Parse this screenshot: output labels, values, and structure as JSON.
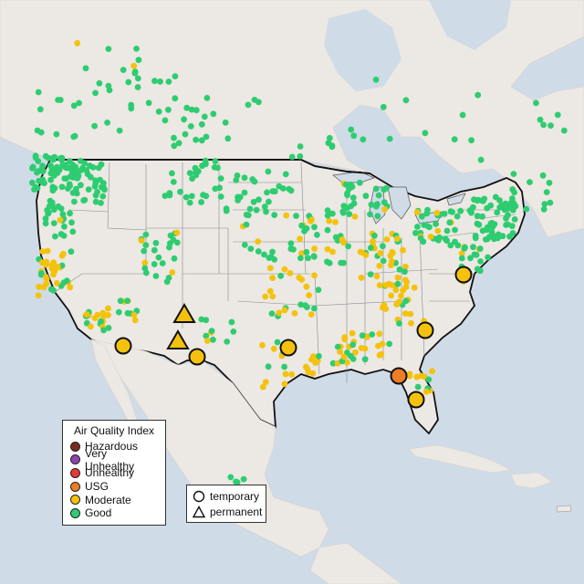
{
  "map": {
    "colors": {
      "water": "#cfdbe7",
      "land": "#ece8e3",
      "good": "#2ecc71",
      "moderate": "#f4c20d",
      "usg": "#ee7d25",
      "unhealthy": "#e53935",
      "very_unhealthy": "#8e44ad",
      "hazardous": "#7b2a20",
      "unreported": "#b9b9b9"
    }
  },
  "legend": {
    "title": "Air Quality Index",
    "items": [
      {
        "label": "Hazardous",
        "color": "#7b2a20"
      },
      {
        "label": "Very Unhealthy",
        "color": "#8e44ad"
      },
      {
        "label": "Unhealthy",
        "color": "#e53935"
      },
      {
        "label": "USG",
        "color": "#ee7d25"
      },
      {
        "label": "Moderate",
        "color": "#f4c20d"
      },
      {
        "label": "Good",
        "color": "#2ecc71"
      }
    ]
  },
  "monitor_types": {
    "temporary": "temporary",
    "permanent": "permanent"
  }
}
